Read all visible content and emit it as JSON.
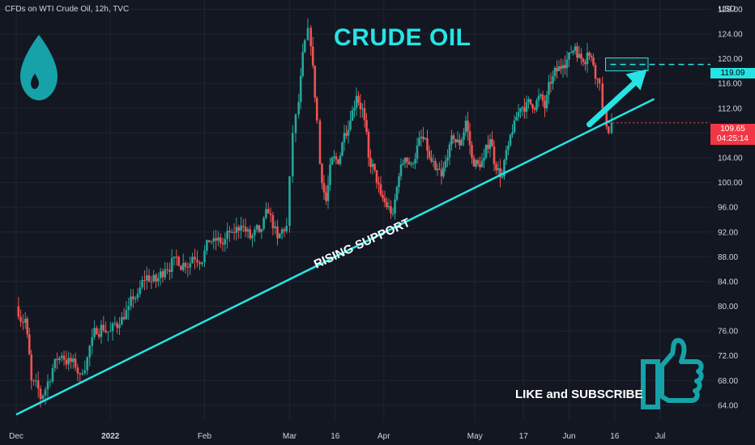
{
  "header": {
    "symbol": "CFDs on WTI Crude Oil, 12h, TVC",
    "currency": "USD",
    "title": "CRUDE OIL",
    "trendline_label": "RISING SUPPORT",
    "cta": "LIKE and SUBSCRIBE",
    "target_price": "119.09",
    "last_price": "109.65",
    "countdown": "04:25:14"
  },
  "icons": [
    "oil-drop-icon",
    "thumbs-up-icon"
  ],
  "colors": {
    "background": "#131722",
    "up": "#26a69a",
    "down": "#ef5350",
    "accent": "#26e4e4",
    "text": "#d1d4dc",
    "grid": "#1f2430"
  },
  "chart_data": {
    "type": "candlestick",
    "title": "CRUDE OIL",
    "ylabel": "USD",
    "ylim": [
      61.5,
      129.5
    ],
    "y_ticks": [
      64,
      68,
      72,
      76,
      80,
      84,
      88,
      92,
      96,
      100,
      104,
      108,
      112,
      116,
      120,
      124,
      128
    ],
    "y_tick_labels": [
      "64.00",
      "68.00",
      "72.00",
      "76.00",
      "80.00",
      "84.00",
      "88.00",
      "92.00",
      "96.00",
      "100.00",
      "104.00",
      "108.00",
      "112.00",
      "116.00",
      "120.00",
      "124.00",
      "128.00"
    ],
    "x_tick_labels": [
      "Dec",
      "2022",
      "Feb",
      "Mar",
      "16",
      "Apr",
      "May",
      "17",
      "Jun",
      "16",
      "Jul"
    ],
    "x_tick_days": [
      0,
      31,
      62,
      90,
      105,
      121,
      151,
      167,
      182,
      197,
      212
    ],
    "grid": true,
    "price_series": {
      "name": "WTI Crude Oil",
      "days": [
        0,
        3,
        5,
        8,
        12,
        15,
        18,
        21,
        25,
        28,
        31,
        34,
        37,
        40,
        43,
        46,
        49,
        52,
        55,
        58,
        62,
        65,
        68,
        71,
        74,
        77,
        80,
        83,
        86,
        89,
        90,
        91,
        92,
        93,
        95,
        96,
        97,
        99,
        100,
        102,
        104,
        106,
        108,
        110,
        112,
        114,
        116,
        118,
        120,
        122,
        124,
        126,
        128,
        130,
        132,
        134,
        136,
        138,
        140,
        142,
        144,
        146,
        148,
        150,
        152,
        154,
        156,
        158,
        160,
        162,
        164,
        166,
        168,
        170,
        172,
        174,
        176,
        178,
        180,
        182,
        184,
        186,
        188,
        190,
        192,
        193,
        195
      ],
      "close": [
        78,
        68,
        65,
        70,
        72,
        71,
        69,
        75,
        77,
        76,
        77,
        80,
        82,
        85,
        84,
        86,
        88,
        87,
        88,
        89,
        91,
        90,
        92,
        93,
        91,
        92,
        95,
        91,
        93,
        101,
        108,
        111,
        113,
        123,
        125,
        122,
        110,
        103,
        97,
        104,
        103,
        108,
        110,
        114,
        112,
        104,
        102,
        98,
        96,
        95,
        101,
        104,
        103,
        106,
        107,
        104,
        102,
        101,
        104,
        107,
        106,
        110,
        104,
        103,
        104,
        107,
        102,
        101,
        106,
        110,
        112,
        113,
        112,
        114,
        112,
        116,
        118,
        119,
        121,
        122,
        120,
        121,
        119,
        116,
        112,
        108,
        109.65
      ]
    },
    "support_line": {
      "name": "RISING SUPPORT",
      "start": {
        "day": 0,
        "price": 62.5
      },
      "end": {
        "day": 210,
        "price": 113.5
      }
    },
    "target": {
      "price": 119.09,
      "day_range": [
        194,
        208
      ]
    },
    "last_price": 109.65
  }
}
